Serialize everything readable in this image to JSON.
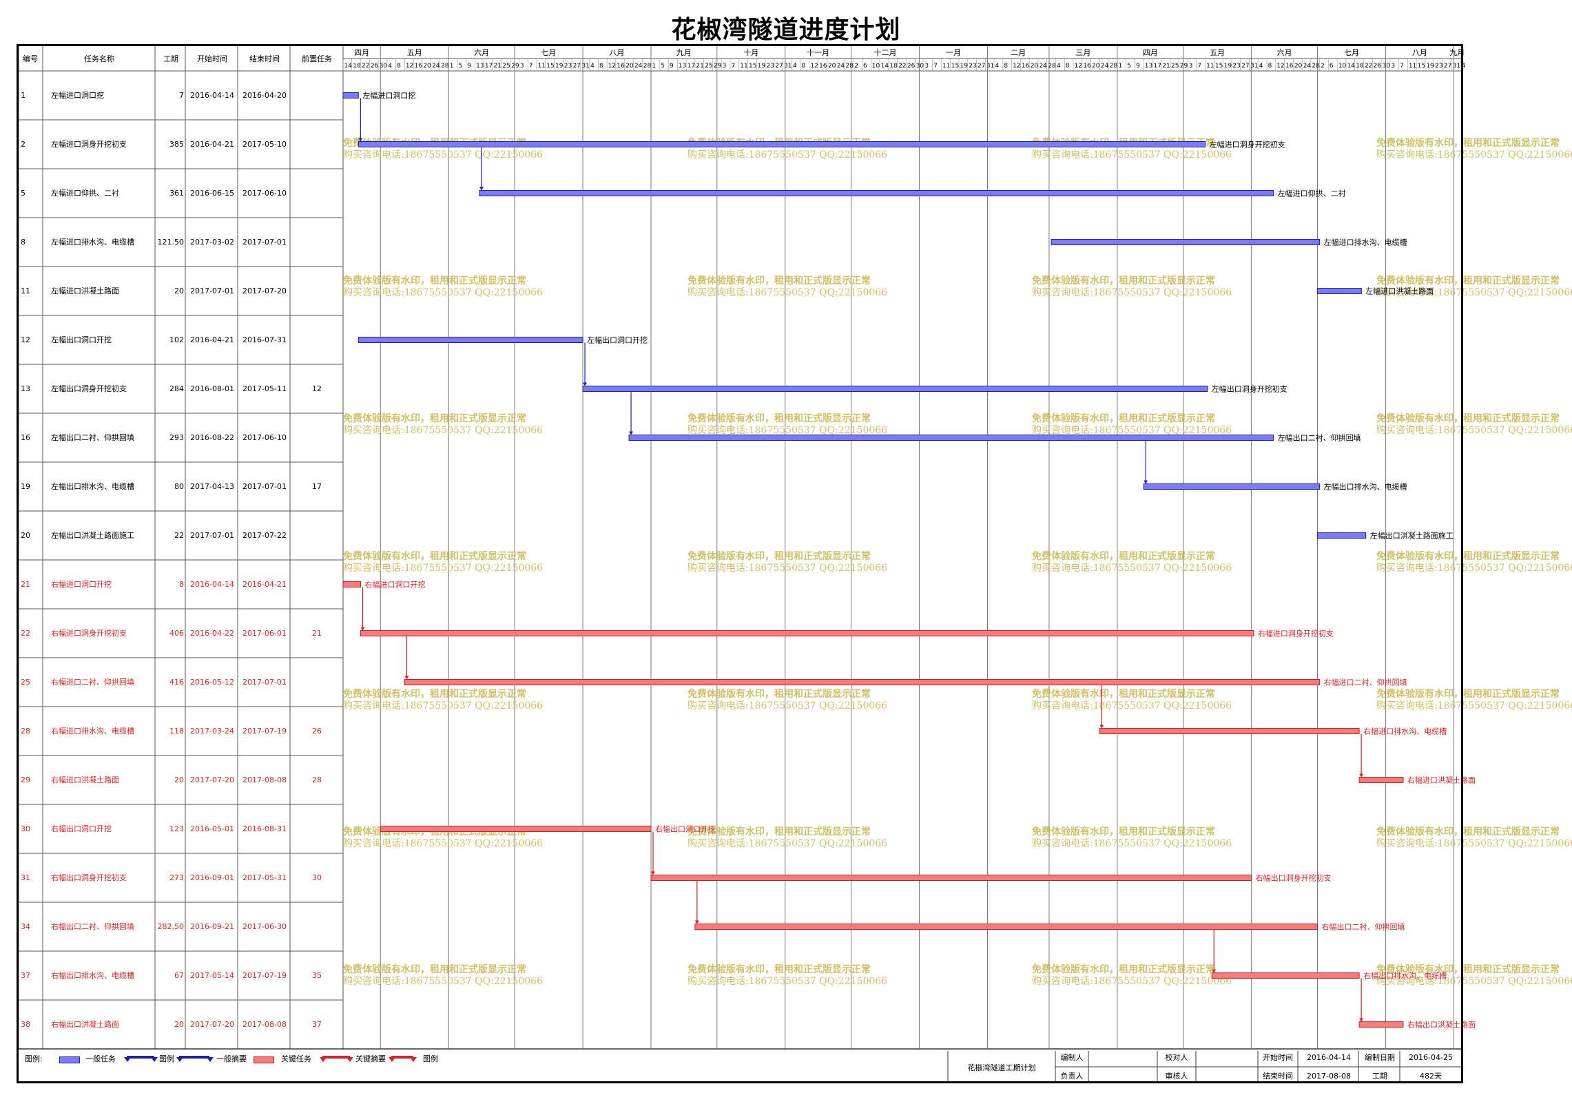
{
  "title": "花椒湾隧道进度计划",
  "table_headers": [
    "编号",
    "任务名称",
    "工期",
    "开始时间",
    "结束时间",
    "前置任务"
  ],
  "timeline": {
    "months": [
      "四月",
      "五月",
      "六月",
      "七月",
      "八月",
      "九月",
      "十月",
      "十一月",
      "十二月",
      "一月",
      "二月",
      "三月",
      "四月",
      "五月",
      "六月",
      "七月",
      "八月",
      "九月"
    ],
    "month_starts": [
      "2016-04-01",
      "2016-05-01",
      "2016-06-01",
      "2016-07-01",
      "2016-08-01",
      "2016-09-01",
      "2016-10-01",
      "2016-11-01",
      "2016-12-01",
      "2017-01-01",
      "2017-02-01",
      "2017-03-01",
      "2017-04-01",
      "2017-05-01",
      "2017-06-01",
      "2017-07-01",
      "2017-08-01",
      "2017-09-01"
    ],
    "chart_start": "2016-04-14",
    "chart_end": "2017-09-04"
  },
  "colors": {
    "general": "#7b7bf3",
    "general_border": "#1e1eb4",
    "critical": "#f47c7c",
    "critical_border": "#d41c1c",
    "critical_text": "#e02020",
    "watermark": "#c9b64a"
  },
  "watermark": {
    "line1": "免费体验版有水印，租用和正式版显示正常",
    "line2": "购买咨询电话:18675550537 QQ:22150066"
  },
  "chart_data": {
    "type": "gantt",
    "tasks": [
      {
        "id": "1",
        "name": "左幅进口洞口挖",
        "duration": "7",
        "start": "2016-04-14",
        "end": "2016-04-20",
        "pred": "",
        "critical": false,
        "label": "左幅进口洞口挖"
      },
      {
        "id": "2",
        "name": "左幅进口洞身开挖初支",
        "duration": "385",
        "start": "2016-04-21",
        "end": "2017-05-10",
        "pred": "",
        "critical": false,
        "label": "左幅进口洞身开挖初支"
      },
      {
        "id": "5",
        "name": "左幅进口仰拱、二衬",
        "duration": "361",
        "start": "2016-06-15",
        "end": "2017-06-10",
        "pred": "",
        "critical": false,
        "label": "左幅进口仰拱、二衬"
      },
      {
        "id": "8",
        "name": "左幅进口排水沟、电缆槽",
        "duration": "121.50",
        "start": "2017-03-02",
        "end": "2017-07-01",
        "pred": "",
        "critical": false,
        "label": "左幅进口排水沟、电缆槽"
      },
      {
        "id": "11",
        "name": "左幅进口洪凝土路面",
        "duration": "20",
        "start": "2017-07-01",
        "end": "2017-07-20",
        "pred": "",
        "critical": false,
        "label": "左幅进口洪凝土路面"
      },
      {
        "id": "12",
        "name": "左幅出口洞口开挖",
        "duration": "102",
        "start": "2016-04-21",
        "end": "2016-07-31",
        "pred": "",
        "critical": false,
        "label": "左幅出口洞口开挖"
      },
      {
        "id": "13",
        "name": "左幅出口洞身开挖初支",
        "duration": "284",
        "start": "2016-08-01",
        "end": "2017-05-11",
        "pred": "12",
        "critical": false,
        "label": "左幅出口洞身开挖初支"
      },
      {
        "id": "16",
        "name": "左幅出口二衬、仰拱回填",
        "duration": "293",
        "start": "2016-08-22",
        "end": "2017-06-10",
        "pred": "",
        "critical": false,
        "label": "左幅出口二衬、仰拱回填"
      },
      {
        "id": "19",
        "name": "左幅出口排水沟、电缆槽",
        "duration": "80",
        "start": "2017-04-13",
        "end": "2017-07-01",
        "pred": "17",
        "critical": false,
        "label": "左幅出口排水沟、电缆槽"
      },
      {
        "id": "20",
        "name": "左幅出口洪凝土路面施工",
        "duration": "22",
        "start": "2017-07-01",
        "end": "2017-07-22",
        "pred": "",
        "critical": false,
        "label": "左幅出口洪凝土路面施工"
      },
      {
        "id": "21",
        "name": "右幅进口洞口开挖",
        "duration": "8",
        "start": "2016-04-14",
        "end": "2016-04-21",
        "pred": "",
        "critical": true,
        "label": "右幅进口洞口开挖"
      },
      {
        "id": "22",
        "name": "右幅进口洞身开挖初支",
        "duration": "406",
        "start": "2016-04-22",
        "end": "2017-06-01",
        "pred": "21",
        "critical": true,
        "label": "右幅进口洞身开挖初支"
      },
      {
        "id": "25",
        "name": "右幅进口二衬、仰拱回填",
        "duration": "416",
        "start": "2016-05-12",
        "end": "2017-07-01",
        "pred": "",
        "critical": true,
        "label": "右幅进口二衬、仰拱回填"
      },
      {
        "id": "28",
        "name": "右幅进口排水沟、电缆槽",
        "duration": "118",
        "start": "2017-03-24",
        "end": "2017-07-19",
        "pred": "26",
        "critical": true,
        "label": "右幅进口排水沟、电缆槽"
      },
      {
        "id": "29",
        "name": "右幅进口洪凝土路面",
        "duration": "20",
        "start": "2017-07-20",
        "end": "2017-08-08",
        "pred": "28",
        "critical": true,
        "label": "右幅进口洪凝土路面"
      },
      {
        "id": "30",
        "name": "右幅出口洞口开挖",
        "duration": "123",
        "start": "2016-05-01",
        "end": "2016-08-31",
        "pred": "",
        "critical": true,
        "label": "右幅出口洞口开挖"
      },
      {
        "id": "31",
        "name": "右幅出口洞身开挖初支",
        "duration": "273",
        "start": "2016-09-01",
        "end": "2017-05-31",
        "pred": "30",
        "critical": true,
        "label": "右幅出口洞身开挖初支"
      },
      {
        "id": "34",
        "name": "右幅出口二衬、仰拱回填",
        "duration": "282.50",
        "start": "2016-09-21",
        "end": "2017-06-30",
        "pred": "",
        "critical": true,
        "label": "右幅出口二衬、仰拱回填"
      },
      {
        "id": "37",
        "name": "右幅出口排水沟、电缆槽",
        "duration": "67",
        "start": "2017-05-14",
        "end": "2017-07-19",
        "pred": "35",
        "critical": true,
        "label": "右幅出口排水沟、电缆槽"
      },
      {
        "id": "38",
        "name": "右幅出口洪凝土路面",
        "duration": "20",
        "start": "2017-07-20",
        "end": "2017-08-08",
        "pred": "37",
        "critical": true,
        "label": "右幅出口洪凝土路面"
      }
    ],
    "links": [
      [
        "1",
        "2"
      ],
      [
        "2",
        "5"
      ],
      [
        "12",
        "13"
      ],
      [
        "13",
        "16"
      ],
      [
        "16",
        "19"
      ],
      [
        "21",
        "22"
      ],
      [
        "22",
        "25"
      ],
      [
        "25",
        "28"
      ],
      [
        "28",
        "29"
      ],
      [
        "30",
        "31"
      ],
      [
        "31",
        "34"
      ],
      [
        "34",
        "37"
      ],
      [
        "37",
        "38"
      ]
    ]
  },
  "legend": {
    "label": "图例:",
    "items": [
      "一般任务",
      "图例",
      "一般摘要",
      "关键任务",
      "关键摘要",
      "图例"
    ]
  },
  "footer": {
    "plan_name": "花椒湾隧道工期计划",
    "editor_label": "编制人",
    "checker_label": "校对人",
    "manager_label": "负责人",
    "reviewer_label": "审核人",
    "start_label": "开始时间",
    "start_value": "2016-04-14",
    "end_label": "结束时间",
    "end_value": "2017-08-08",
    "date_label": "编制日期",
    "date_value": "2016-04-25",
    "duration_label": "工期",
    "duration_value": "482天"
  }
}
